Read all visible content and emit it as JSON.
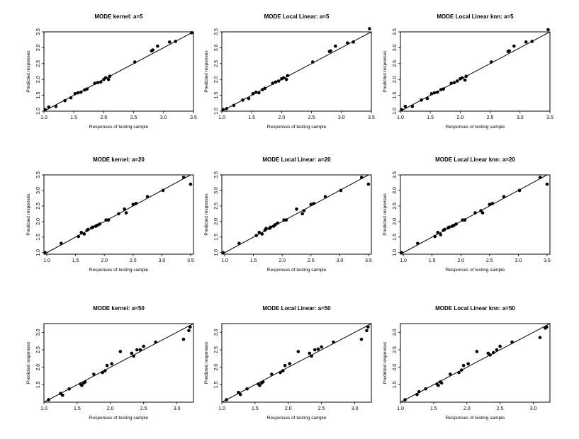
{
  "figure": {
    "background": "#ffffff",
    "point_color": "#000000",
    "line_color": "#000000"
  },
  "chart_data": [
    {
      "type": "scatter",
      "title": "MODE kernel: a=5",
      "xlabel": "Responses of testing sample",
      "ylabel": "Predicted responses",
      "xlim": [
        1.0,
        3.5
      ],
      "ylim": [
        1.0,
        3.5
      ],
      "xticks": [
        "1.0",
        "1.5",
        "2.0",
        "2.5",
        "3.0",
        "3.5"
      ],
      "yticks": [
        "1.0",
        "1.5",
        "2.0",
        "2.5",
        "3.0",
        "3.5"
      ],
      "reference_line": "y = x",
      "x": [
        1.02,
        1.08,
        1.2,
        1.35,
        1.45,
        1.52,
        1.57,
        1.62,
        1.68,
        1.72,
        1.85,
        1.9,
        1.95,
        2.0,
        2.03,
        2.08,
        2.1,
        2.52,
        2.8,
        2.82,
        2.9,
        3.1,
        3.2,
        3.47
      ],
      "y": [
        1.05,
        1.13,
        1.15,
        1.33,
        1.42,
        1.55,
        1.58,
        1.6,
        1.67,
        1.7,
        1.88,
        1.9,
        1.92,
        2.0,
        2.05,
        2.0,
        2.1,
        2.55,
        2.9,
        2.93,
        3.05,
        3.18,
        3.2,
        3.47
      ]
    },
    {
      "type": "scatter",
      "title": "MODE Local Linear: a=5",
      "xlabel": "Responses of testing sample",
      "ylabel": "Predicted responses",
      "xlim": [
        1.0,
        3.5
      ],
      "ylim": [
        1.0,
        3.5
      ],
      "xticks": [
        "1.0",
        "1.5",
        "2.0",
        "2.5",
        "3.0",
        "3.5"
      ],
      "yticks": [
        "1.0",
        "1.5",
        "2.0",
        "2.5",
        "3.0",
        "3.5"
      ],
      "reference_line": "y = x",
      "x": [
        1.02,
        1.08,
        1.2,
        1.35,
        1.45,
        1.52,
        1.57,
        1.62,
        1.68,
        1.72,
        1.85,
        1.9,
        1.95,
        2.0,
        2.03,
        2.08,
        2.1,
        2.52,
        2.8,
        2.82,
        2.9,
        3.1,
        3.2,
        3.47
      ],
      "y": [
        1.05,
        1.08,
        1.18,
        1.35,
        1.4,
        1.55,
        1.6,
        1.58,
        1.68,
        1.72,
        1.88,
        1.92,
        1.95,
        2.02,
        2.05,
        2.0,
        2.12,
        2.55,
        2.88,
        2.9,
        3.05,
        3.15,
        3.18,
        3.6
      ]
    },
    {
      "type": "scatter",
      "title": "MODE Local Linear knn: a=5",
      "xlabel": "Responses of testing sample",
      "ylabel": "Predicted responses",
      "xlim": [
        1.0,
        3.5
      ],
      "ylim": [
        1.0,
        3.5
      ],
      "xticks": [
        "1.0",
        "1.5",
        "2.0",
        "2.5",
        "3.0",
        "3.5"
      ],
      "yticks": [
        "1.0",
        "1.5",
        "2.0",
        "2.5",
        "3.0",
        "3.5"
      ],
      "reference_line": "y = x",
      "x": [
        1.02,
        1.08,
        1.2,
        1.35,
        1.45,
        1.52,
        1.57,
        1.62,
        1.68,
        1.72,
        1.85,
        1.9,
        1.95,
        2.0,
        2.03,
        2.08,
        2.1,
        2.52,
        2.8,
        2.82,
        2.9,
        3.1,
        3.2,
        3.47
      ],
      "y": [
        1.05,
        1.15,
        1.15,
        1.35,
        1.4,
        1.55,
        1.58,
        1.6,
        1.68,
        1.7,
        1.88,
        1.9,
        1.95,
        2.02,
        2.05,
        1.98,
        2.1,
        2.55,
        2.88,
        2.9,
        3.05,
        3.18,
        3.2,
        3.57
      ]
    },
    {
      "type": "scatter",
      "title": "MODE kernel: a=20",
      "xlabel": "Responses of testing sample",
      "ylabel": "Predicted responses",
      "xlim": [
        0.95,
        3.55
      ],
      "ylim": [
        0.95,
        3.5
      ],
      "xticks": [
        "1.0",
        "1.5",
        "2.0",
        "2.5",
        "3.0",
        "3.5"
      ],
      "yticks": [
        "1.0",
        "1.5",
        "2.0",
        "2.5",
        "3.0",
        "3.5"
      ],
      "reference_line": "y = x",
      "x": [
        0.97,
        1.25,
        1.55,
        1.6,
        1.65,
        1.7,
        1.72,
        1.78,
        1.8,
        1.85,
        1.88,
        1.92,
        2.03,
        2.07,
        2.25,
        2.35,
        2.38,
        2.5,
        2.55,
        2.75,
        3.02,
        3.38,
        3.5
      ],
      "y": [
        1.0,
        1.3,
        1.52,
        1.65,
        1.6,
        1.72,
        1.75,
        1.8,
        1.82,
        1.85,
        1.88,
        1.92,
        2.05,
        2.05,
        2.25,
        2.4,
        2.28,
        2.55,
        2.58,
        2.8,
        3.0,
        3.42,
        3.2
      ]
    },
    {
      "type": "scatter",
      "title": "MODE Local Linear: a=20",
      "xlabel": "Responses of testing sample",
      "ylabel": "Predicted responses",
      "xlim": [
        0.95,
        3.55
      ],
      "ylim": [
        0.95,
        3.5
      ],
      "xticks": [
        "1.0",
        "1.5",
        "2.0",
        "2.5",
        "3.0",
        "3.5"
      ],
      "yticks": [
        "1.0",
        "1.5",
        "2.0",
        "2.5",
        "3.0",
        "3.5"
      ],
      "reference_line": "y = x",
      "x": [
        0.97,
        1.25,
        1.55,
        1.6,
        1.65,
        1.7,
        1.72,
        1.78,
        1.8,
        1.85,
        1.88,
        1.92,
        2.03,
        2.07,
        2.25,
        2.35,
        2.38,
        2.5,
        2.55,
        2.75,
        3.02,
        3.38,
        3.5
      ],
      "y": [
        1.0,
        1.3,
        1.55,
        1.65,
        1.6,
        1.72,
        1.78,
        1.78,
        1.82,
        1.85,
        1.9,
        1.95,
        2.05,
        2.05,
        2.4,
        2.25,
        2.35,
        2.55,
        2.58,
        2.8,
        3.0,
        3.42,
        3.2
      ]
    },
    {
      "type": "scatter",
      "title": "MODE Local Linear knn: a=20",
      "xlabel": "Responses of testing sample",
      "ylabel": "Predicted responses",
      "xlim": [
        0.95,
        3.55
      ],
      "ylim": [
        0.95,
        3.5
      ],
      "xticks": [
        "1.0",
        "1.5",
        "2.0",
        "2.5",
        "3.0",
        "3.5"
      ],
      "yticks": [
        "1.0",
        "1.5",
        "2.0",
        "2.5",
        "3.0",
        "3.5"
      ],
      "reference_line": "y = x",
      "x": [
        0.97,
        1.25,
        1.55,
        1.6,
        1.65,
        1.7,
        1.72,
        1.78,
        1.8,
        1.85,
        1.88,
        1.92,
        2.03,
        2.07,
        2.25,
        2.35,
        2.38,
        2.5,
        2.55,
        2.75,
        3.02,
        3.38,
        3.5
      ],
      "y": [
        1.0,
        1.3,
        1.52,
        1.65,
        1.58,
        1.72,
        1.75,
        1.8,
        1.82,
        1.85,
        1.88,
        1.92,
        2.05,
        2.05,
        2.28,
        2.35,
        2.28,
        2.55,
        2.58,
        2.8,
        3.0,
        3.42,
        3.2
      ]
    },
    {
      "type": "scatter",
      "title": "MODE kernel: a=50",
      "xlabel": "Responses of testing sample",
      "ylabel": "Predicted responses",
      "xlim": [
        1.0,
        3.25
      ],
      "ylim": [
        1.0,
        3.25
      ],
      "xticks": [
        "1.0",
        "1.5",
        "2.0",
        "2.5",
        "3.0"
      ],
      "yticks": [
        "1.5",
        "2.0",
        "2.5",
        "3.0"
      ],
      "reference_line": "y = x",
      "x": [
        1.07,
        1.25,
        1.28,
        1.38,
        1.55,
        1.57,
        1.6,
        1.62,
        1.75,
        1.88,
        1.92,
        1.95,
        2.02,
        2.15,
        2.32,
        2.35,
        2.4,
        2.45,
        2.5,
        2.68,
        3.1,
        3.18,
        3.2
      ],
      "y": [
        1.07,
        1.25,
        1.2,
        1.38,
        1.52,
        1.48,
        1.55,
        1.58,
        1.8,
        1.85,
        1.9,
        2.05,
        2.1,
        2.45,
        2.4,
        2.32,
        2.5,
        2.5,
        2.6,
        2.72,
        2.8,
        3.05,
        3.15
      ]
    },
    {
      "type": "scatter",
      "title": "MODE Local Linear: a=50",
      "xlabel": "Responses of testing sample",
      "ylabel": "Predicted responses",
      "xlim": [
        1.0,
        3.25
      ],
      "ylim": [
        1.0,
        3.25
      ],
      "xticks": [
        "1.0",
        "1.5",
        "2.0",
        "2.5",
        "3.0"
      ],
      "yticks": [
        "1.5",
        "2.0",
        "2.5",
        "3.0"
      ],
      "reference_line": "y = x",
      "x": [
        1.07,
        1.25,
        1.28,
        1.38,
        1.55,
        1.57,
        1.6,
        1.62,
        1.75,
        1.88,
        1.92,
        1.95,
        2.02,
        2.15,
        2.32,
        2.35,
        2.4,
        2.45,
        2.5,
        2.68,
        3.1,
        3.18,
        3.2
      ],
      "y": [
        1.07,
        1.28,
        1.22,
        1.38,
        1.52,
        1.48,
        1.55,
        1.58,
        1.8,
        1.85,
        1.9,
        2.05,
        2.1,
        2.45,
        2.4,
        2.32,
        2.5,
        2.52,
        2.58,
        2.72,
        2.8,
        3.05,
        3.15
      ]
    },
    {
      "type": "scatter",
      "title": "MODE Local Linear knn: a=50",
      "xlabel": "Responses of testing sample",
      "ylabel": "Predicted responses",
      "xlim": [
        1.0,
        3.25
      ],
      "ylim": [
        1.0,
        3.25
      ],
      "xticks": [
        "1.0",
        "1.5",
        "2.0",
        "2.5",
        "3.0"
      ],
      "yticks": [
        "1.5",
        "2.0",
        "2.5",
        "3.0"
      ],
      "reference_line": "y = x",
      "x": [
        1.07,
        1.25,
        1.28,
        1.38,
        1.55,
        1.57,
        1.6,
        1.62,
        1.75,
        1.88,
        1.92,
        1.95,
        2.02,
        2.15,
        2.32,
        2.35,
        2.4,
        2.45,
        2.5,
        2.68,
        3.1,
        3.18,
        3.2
      ],
      "y": [
        1.07,
        1.22,
        1.3,
        1.38,
        1.52,
        1.48,
        1.58,
        1.55,
        1.8,
        1.85,
        1.92,
        2.05,
        2.1,
        2.45,
        2.4,
        2.35,
        2.42,
        2.5,
        2.6,
        2.72,
        2.85,
        3.12,
        3.15
      ]
    }
  ]
}
